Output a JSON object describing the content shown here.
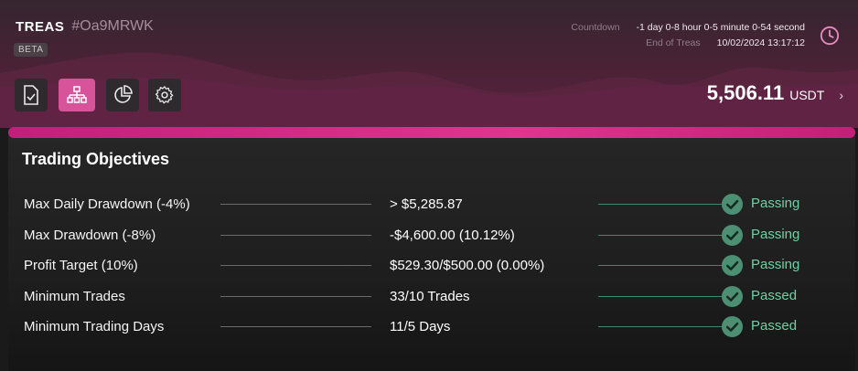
{
  "header": {
    "brand_name": "TREAS",
    "account_id": "#Oa9MRWK",
    "badge": "BETA",
    "countdown_label": "Countdown",
    "countdown_value": "-1 day 0-8 hour 0-5 minute 0-54 second",
    "end_label": "End of Treas",
    "end_value": "10/02/2024 13:17:12",
    "clock_icon": "clock-icon"
  },
  "toolbar": {
    "buttons": [
      {
        "icon": "document-check-icon",
        "active": false
      },
      {
        "icon": "hierarchy-icon",
        "active": true
      },
      {
        "icon": "pie-chart-icon",
        "active": false
      },
      {
        "icon": "gear-icon",
        "active": false
      }
    ]
  },
  "balance": {
    "amount": "5,506.11",
    "unit": "USDT",
    "chevron": "›"
  },
  "progress": {
    "fraction": 1.0,
    "color": "#d7287f"
  },
  "objectives": {
    "title": "Trading Objectives",
    "rows": [
      {
        "label": "Max Daily Drawdown (-4%)",
        "value": "> $5,285.87",
        "status": "Passing"
      },
      {
        "label": "Max Drawdown (-8%)",
        "value": "-$4,600.00 (10.12%)",
        "status": "Passing"
      },
      {
        "label": "Profit Target (10%)",
        "value": "$529.30/$500.00 (0.00%)",
        "status": "Passing"
      },
      {
        "label": "Minimum Trades",
        "value": "33/10 Trades",
        "status": "Passed"
      },
      {
        "label": "Minimum Trading Days",
        "value": "11/5 Days",
        "status": "Passed"
      }
    ],
    "status_color": "#6ed1a4",
    "check_icon": "check-circle-icon"
  }
}
